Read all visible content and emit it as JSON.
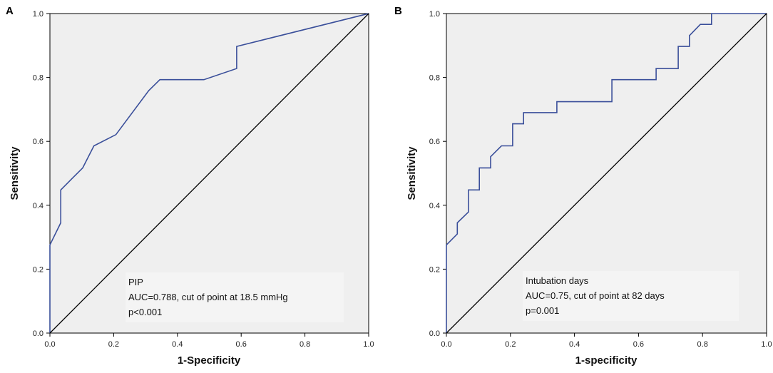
{
  "chart_data": [
    {
      "panel": "A",
      "type": "line",
      "xlabel": "1-Specificity",
      "ylabel": "Sensitivity",
      "xlim": [
        0,
        1
      ],
      "ylim": [
        0,
        1
      ],
      "xticks": [
        "0.0",
        "0.2",
        "0.4",
        "0.6",
        "0.8",
        "1.0"
      ],
      "yticks": [
        "0.0",
        "0.2",
        "0.4",
        "0.6",
        "0.8",
        "1.0"
      ],
      "annotation": [
        "PIP",
        "AUC=0.788, cut of point at 18.5 mmHg",
        "p<0.001"
      ],
      "series": [
        {
          "name": "ROC",
          "color": "#3a4f9a",
          "x": [
            0,
            0,
            0.034,
            0.034,
            0.069,
            0.103,
            0.138,
            0.207,
            0.31,
            0.345,
            0.483,
            0.586,
            0.586,
            1.0
          ],
          "y": [
            0,
            0.276,
            0.345,
            0.448,
            0.483,
            0.517,
            0.586,
            0.621,
            0.759,
            0.793,
            0.793,
            0.828,
            0.897,
            1.0
          ]
        },
        {
          "name": "Reference",
          "color": "#000000",
          "x": [
            0,
            1
          ],
          "y": [
            0,
            1
          ]
        }
      ]
    },
    {
      "panel": "B",
      "type": "line",
      "xlabel": "1-specificity",
      "ylabel": "Sensitivity",
      "xlim": [
        0,
        1
      ],
      "ylim": [
        0,
        1
      ],
      "xticks": [
        "0.0",
        "0.2",
        "0.4",
        "0.6",
        "0.8",
        "1.0"
      ],
      "yticks": [
        "0.0",
        "0.2",
        "0.4",
        "0.6",
        "0.8",
        "1.0"
      ],
      "annotation": [
        "Intubation days",
        "AUC=0.75, cut of point at 82 days",
        "p=0.001"
      ],
      "series": [
        {
          "name": "ROC",
          "color": "#3a4f9a",
          "x": [
            0,
            0,
            0.034,
            0.034,
            0.069,
            0.069,
            0.103,
            0.103,
            0.138,
            0.138,
            0.172,
            0.172,
            0.207,
            0.207,
            0.241,
            0.241,
            0.345,
            0.345,
            0.517,
            0.517,
            0.655,
            0.655,
            0.724,
            0.724,
            0.759,
            0.759,
            0.793,
            0.793,
            0.828,
            0.828,
            1.0
          ],
          "y": [
            0,
            0.276,
            0.31,
            0.345,
            0.379,
            0.448,
            0.448,
            0.517,
            0.517,
            0.552,
            0.586,
            0.586,
            0.586,
            0.655,
            0.655,
            0.69,
            0.69,
            0.724,
            0.724,
            0.793,
            0.793,
            0.828,
            0.828,
            0.897,
            0.897,
            0.931,
            0.966,
            0.966,
            0.966,
            1.0,
            1.0
          ]
        },
        {
          "name": "Reference",
          "color": "#000000",
          "x": [
            0,
            1
          ],
          "y": [
            0,
            1
          ]
        }
      ]
    }
  ],
  "colors": {
    "plot_bg": "#efefef",
    "annotation_bg": "#f4f4f4"
  }
}
